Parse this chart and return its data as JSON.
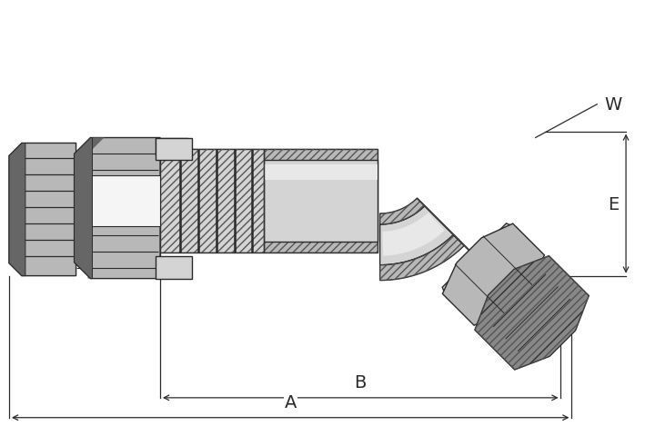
{
  "bg_color": "#ffffff",
  "line_color": "#2a2a2a",
  "c_light": "#d4d4d4",
  "c_mid": "#b8b8b8",
  "c_dark": "#888888",
  "c_vdark": "#666666",
  "c_white": "#f5f5f5",
  "c_shine": "#e8e8e8",
  "label_A": "A",
  "label_B": "B",
  "label_W": "W",
  "label_E": "E",
  "figsize": [
    7.09,
    4.81
  ],
  "dpi": 100,
  "lw": 1.0
}
